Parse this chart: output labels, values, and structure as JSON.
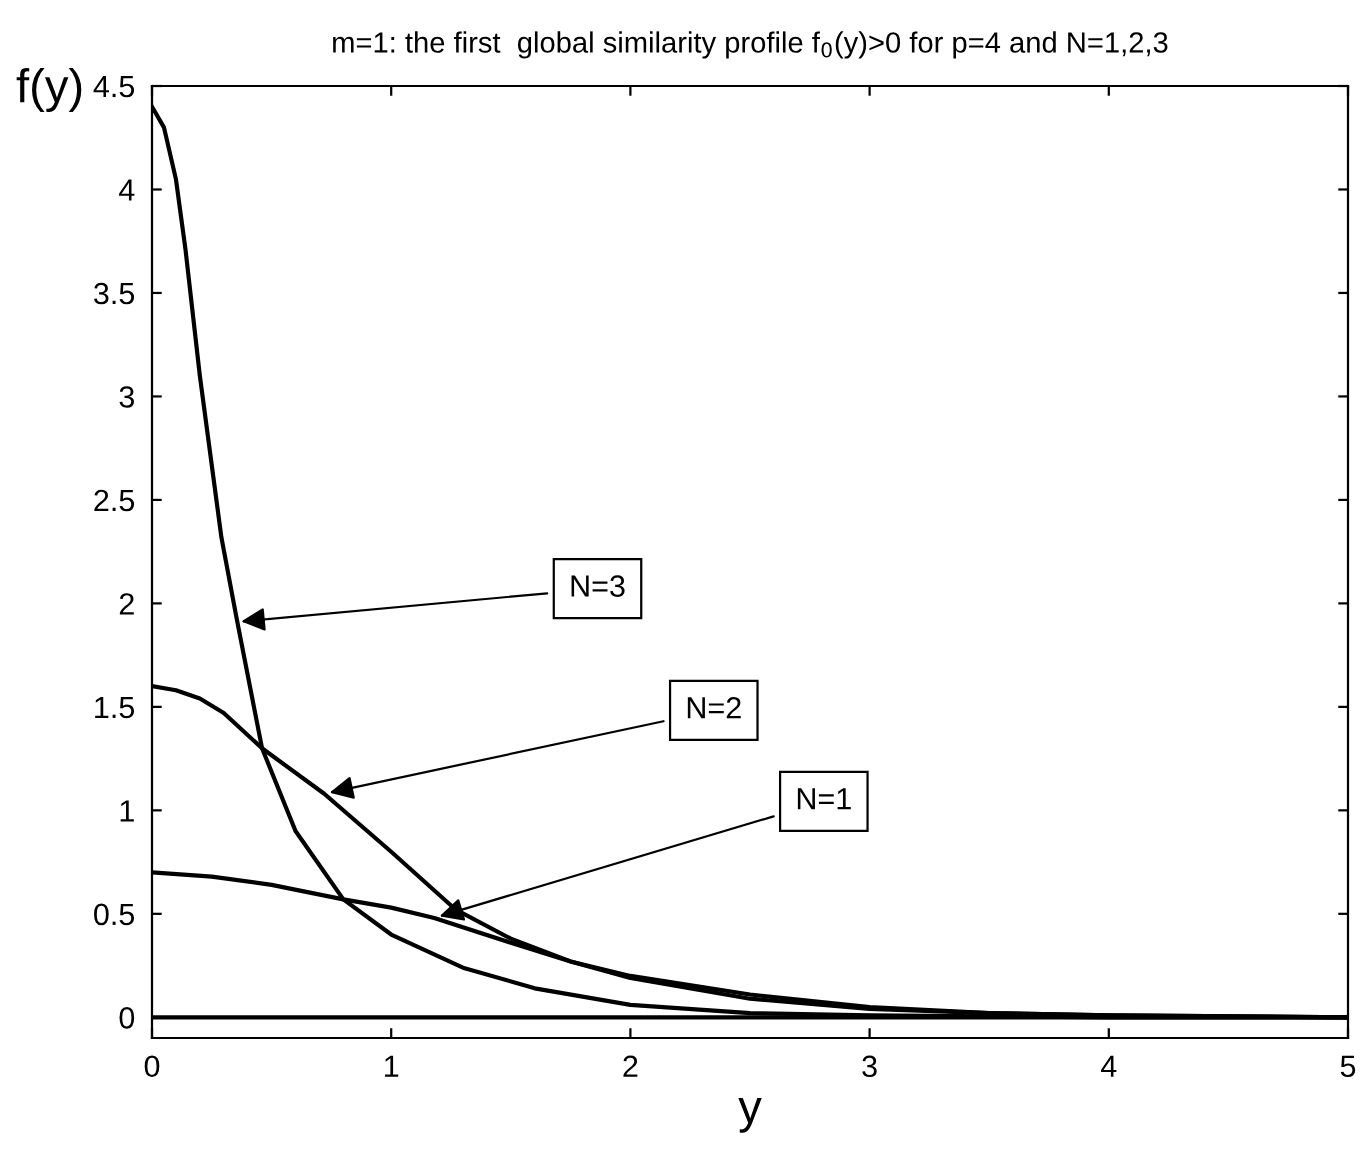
{
  "chart_data": {
    "type": "line",
    "title": "m=1: the first  global similarity profile f$_{0}$(y)>0 for p=4 and N=1,2,3",
    "xlabel": "y",
    "ylabel": "f(y)",
    "xlim": [
      0,
      5
    ],
    "ylim": [
      -0.1,
      4.5
    ],
    "xticks": [
      0,
      1,
      2,
      3,
      4,
      5
    ],
    "yticks": [
      0,
      0.5,
      1,
      1.5,
      2,
      2.5,
      3,
      3.5,
      4,
      4.5
    ],
    "grid": false,
    "marker": "none",
    "line_style": "solid",
    "series": [
      {
        "color": "#000000",
        "x": [
          0,
          0.25,
          0.5,
          0.8,
          1.0,
          1.18,
          1.5,
          1.75,
          2,
          2.5,
          3,
          3.5,
          4,
          5
        ],
        "values": [
          0.7,
          0.68,
          0.64,
          0.57,
          0.53,
          0.48,
          0.36,
          0.27,
          0.2,
          0.11,
          0.05,
          0.02,
          0.01,
          0
        ]
      },
      {
        "color": "#000000",
        "x": [
          0,
          0.1,
          0.2,
          0.3,
          0.46,
          0.72,
          1.0,
          1.27,
          1.5,
          1.75,
          2,
          2.5,
          3,
          3.5,
          4,
          5
        ],
        "values": [
          1.6,
          1.58,
          1.54,
          1.47,
          1.3,
          1.08,
          0.8,
          0.52,
          0.38,
          0.27,
          0.19,
          0.09,
          0.04,
          0.02,
          0.01,
          0
        ]
      },
      {
        "color": "#000000",
        "x": [
          0,
          0.05,
          0.1,
          0.14,
          0.2,
          0.29,
          0.355,
          0.46,
          0.6,
          0.8,
          1.0,
          1.3,
          1.6,
          2,
          2.5,
          3,
          4,
          5
        ],
        "values": [
          4.4,
          4.3,
          4.05,
          3.71,
          3.1,
          2.32,
          1.92,
          1.3,
          0.9,
          0.57,
          0.4,
          0.24,
          0.14,
          0.06,
          0.02,
          0.01,
          0,
          0
        ]
      }
    ],
    "ref_lines": [
      {
        "axis": "y",
        "value": 0,
        "color": "#000000"
      }
    ],
    "annotations": [
      {
        "text": "N=3",
        "x": 0.35,
        "y": 1.91
      },
      {
        "text": "N=2",
        "x": 0.72,
        "y": 1.08
      },
      {
        "text": "N=1",
        "x": 1.18,
        "y": 0.48
      }
    ]
  }
}
